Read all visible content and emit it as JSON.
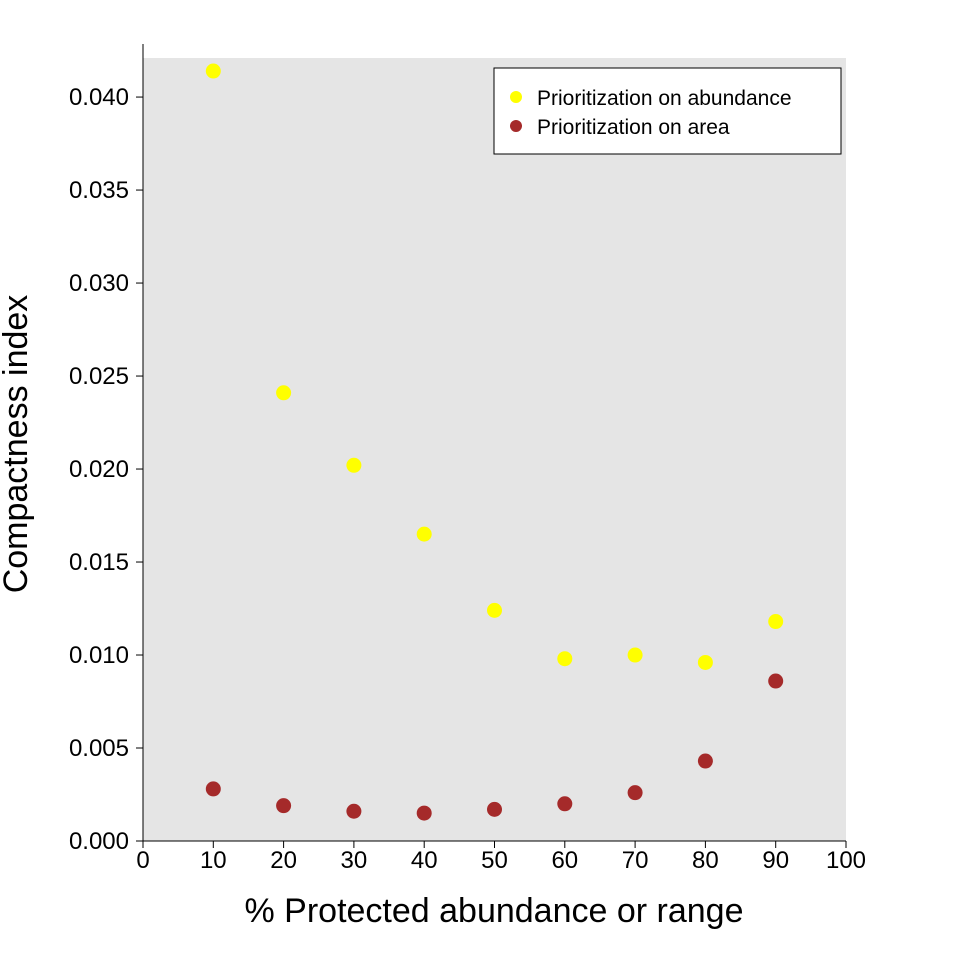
{
  "chart_data": {
    "type": "scatter",
    "title": "",
    "xlabel": "% Protected abundance or range",
    "ylabel": "Compactness index",
    "xlim": [
      0,
      100
    ],
    "ylim": [
      0,
      0.042
    ],
    "x_ticks": [
      "0",
      "10",
      "20",
      "30",
      "40",
      "50",
      "60",
      "70",
      "80",
      "90",
      "100"
    ],
    "y_ticks": [
      "0.000",
      "0.005",
      "0.010",
      "0.015",
      "0.020",
      "0.025",
      "0.030",
      "0.035",
      "0.040"
    ],
    "grid": false,
    "panel_background": "#e5e5e5",
    "legend_position": "top-right",
    "series": [
      {
        "name": "Prioritization on abundance",
        "color": "#ffff00",
        "x": [
          10,
          20,
          30,
          40,
          50,
          60,
          70,
          80,
          90
        ],
        "y": [
          0.0414,
          0.0241,
          0.0202,
          0.0165,
          0.0124,
          0.0098,
          0.01,
          0.0096,
          0.0118
        ]
      },
      {
        "name": "Prioritization on area",
        "color": "#a52a2a",
        "x": [
          10,
          20,
          30,
          40,
          50,
          60,
          70,
          80,
          90
        ],
        "y": [
          0.0028,
          0.0019,
          0.0016,
          0.0015,
          0.0017,
          0.002,
          0.0026,
          0.0043,
          0.0086
        ]
      }
    ]
  }
}
